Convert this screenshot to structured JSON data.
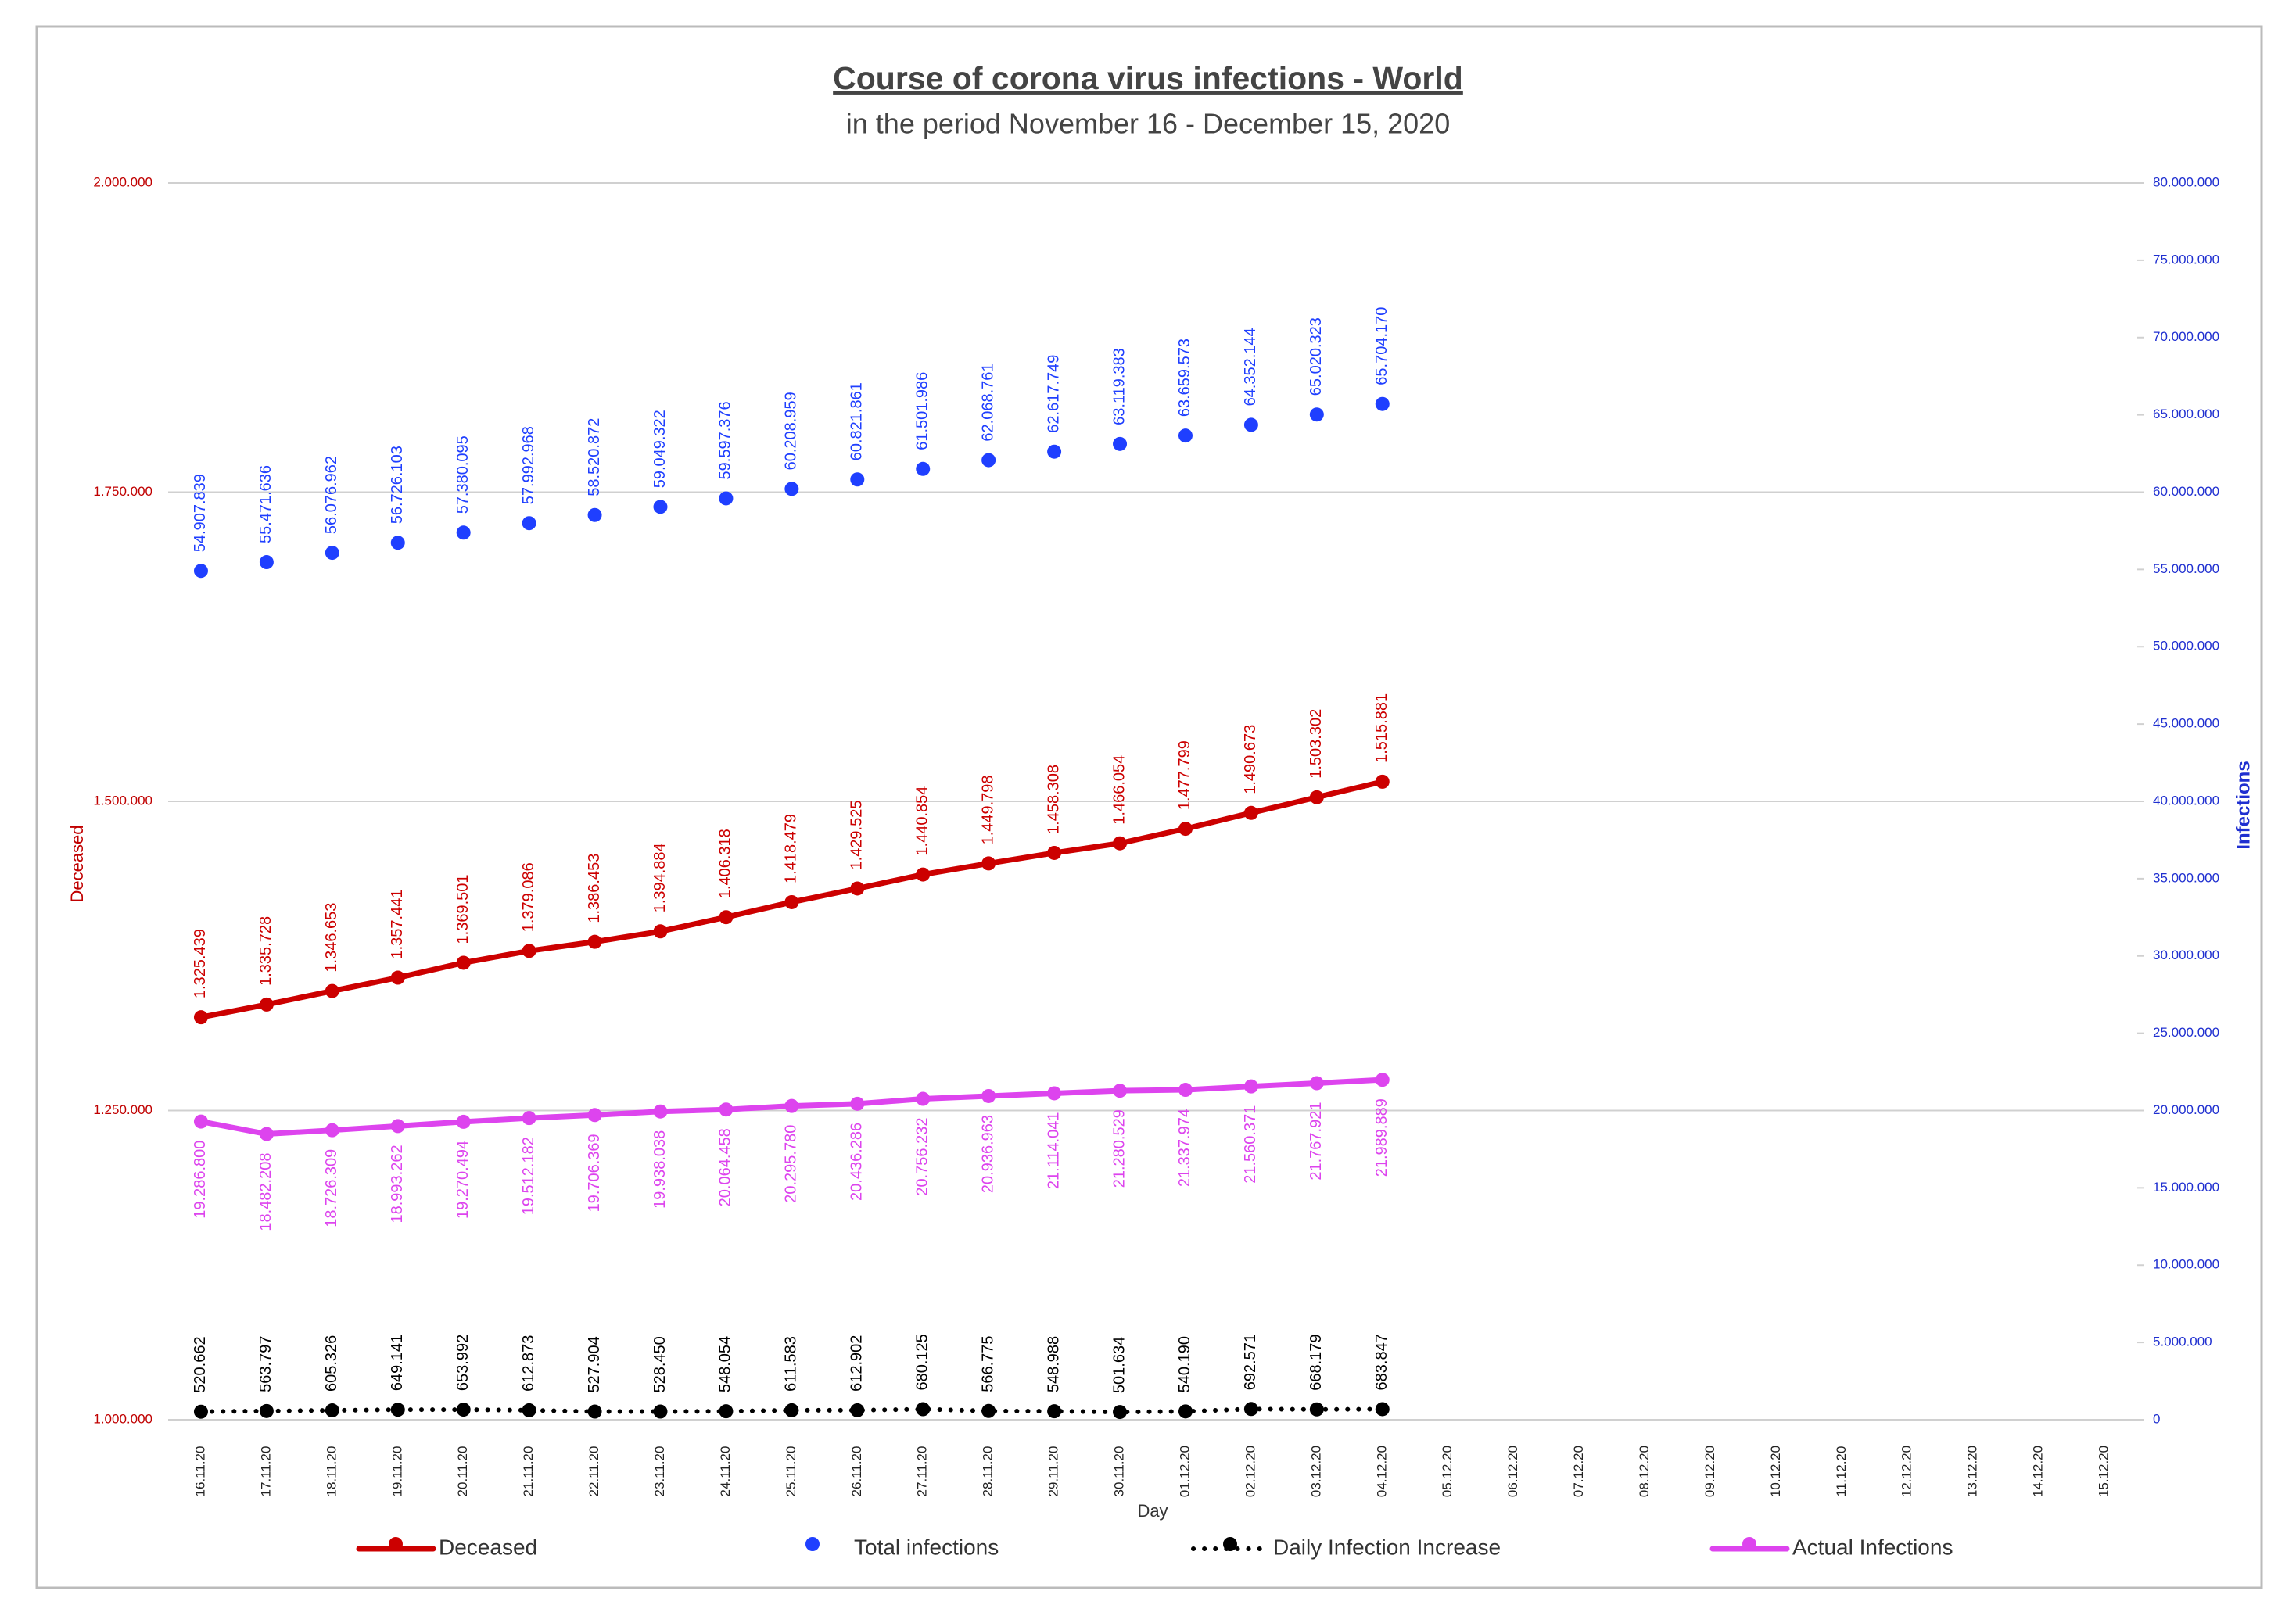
{
  "chart_data": {
    "type": "line",
    "title": "Course of corona virus infections - World",
    "subtitle": "in the period November 16 - December 15, 2020",
    "x_label": "Day",
    "y_label": "Deceased",
    "y2_label": "Infections",
    "categories": [
      "16.11.20",
      "17.11.20",
      "18.11.20",
      "19.11.20",
      "20.11.20",
      "21.11.20",
      "22.11.20",
      "23.11.20",
      "24.11.20",
      "25.11.20",
      "26.11.20",
      "27.11.20",
      "28.11.20",
      "29.11.20",
      "30.11.20",
      "01.12.20",
      "02.12.20",
      "03.12.20",
      "04.12.20",
      "05.12.20",
      "06.12.20",
      "07.12.20",
      "08.12.20",
      "09.12.20",
      "10.12.20",
      "11.12.20",
      "12.12.20",
      "13.12.20",
      "14.12.20",
      "15.12.20"
    ],
    "ylim": [
      1000000,
      2000000
    ],
    "yticks": [
      {
        "value": 1000000,
        "label": "1.000.000"
      },
      {
        "value": 1250000,
        "label": "1.250.000"
      },
      {
        "value": 1500000,
        "label": "1.500.000"
      },
      {
        "value": 1750000,
        "label": "1.750.000"
      },
      {
        "value": 2000000,
        "label": "2.000.000"
      }
    ],
    "y2lim": [
      0,
      80000000
    ],
    "y2ticks": [
      0,
      {
        "value": 5000000,
        "label": "5.000.000"
      },
      {
        "value": 10000000,
        "label": "10.000.000"
      },
      {
        "value": 15000000,
        "label": "15.000.000"
      },
      {
        "value": 20000000,
        "label": "20.000.000"
      },
      {
        "value": 25000000,
        "label": "25.000.000"
      },
      {
        "value": 30000000,
        "label": "30.000.000"
      },
      {
        "value": 35000000,
        "label": "35.000.000"
      },
      {
        "value": 40000000,
        "label": "40.000.000"
      },
      {
        "value": 45000000,
        "label": "45.000.000"
      },
      {
        "value": 50000000,
        "label": "50.000.000"
      },
      {
        "value": 55000000,
        "label": "55.000.000"
      },
      {
        "value": 60000000,
        "label": "60.000.000"
      },
      {
        "value": 65000000,
        "label": "65.000.000"
      },
      {
        "value": 70000000,
        "label": "70.000.000"
      },
      {
        "value": 75000000,
        "label": "75.000.000"
      },
      {
        "value": 80000000,
        "label": "80.000.000"
      }
    ],
    "grid": true,
    "y_color": "#c00000",
    "y2_color": "#1f2fd0",
    "series": [
      {
        "name": "Deceased",
        "color": "#cc0000",
        "line_style": "solid",
        "label_side": "above",
        "values": [
          1325439,
          1335728,
          1346653,
          1357441,
          1369501,
          1379086,
          1386453,
          1394884,
          1406318,
          1418479,
          1429525,
          1440854,
          1449798,
          1458308,
          1466054,
          1477799,
          1490673,
          1503302,
          1515881,
          null,
          null,
          null,
          null,
          null,
          null,
          null,
          null,
          null,
          null,
          null
        ],
        "value_labels": [
          "1.325.439",
          "1.335.728",
          "1.346.653",
          "1.357.441",
          "1.369.501",
          "1.379.086",
          "1.386.453",
          "1.394.884",
          "1.406.318",
          "1.418.479",
          "1.429.525",
          "1.440.854",
          "1.449.798",
          "1.458.308",
          "1.466.054",
          "1.477.799",
          "1.490.673",
          "1.503.302",
          "1.515.881",
          null,
          null,
          null,
          null,
          null,
          null,
          null,
          null,
          null,
          null,
          null
        ]
      },
      {
        "name": "Total infections",
        "color": "#1f3fff",
        "line_style": "none",
        "axis": "y2",
        "label_side": "above",
        "values": [
          54907839,
          55471636,
          56076962,
          56726103,
          57380095,
          57992968,
          58520872,
          59049322,
          59597376,
          60208959,
          60821861,
          61501986,
          62068761,
          62617749,
          63119383,
          63659573,
          64352144,
          65020323,
          65704170,
          null,
          null,
          null,
          null,
          null,
          null,
          null,
          null,
          null,
          null,
          null
        ],
        "value_labels": [
          "54.907.839",
          "55.471.636",
          "56.076.962",
          "56.726.103",
          "57.380.095",
          "57.992.968",
          "58.520.872",
          "59.049.322",
          "59.597.376",
          "60.208.959",
          "60.821.861",
          "61.501.986",
          "62.068.761",
          "62.617.749",
          "63.119.383",
          "63.659.573",
          "64.352.144",
          "65.020.323",
          "65.704.170",
          null,
          null,
          null,
          null,
          null,
          null,
          null,
          null,
          null,
          null,
          null
        ]
      },
      {
        "name": "Daily Infection Increase",
        "color": "#000000",
        "line_style": "dotted",
        "axis": "y2",
        "label_side": "above",
        "values": [
          520662,
          563797,
          605326,
          649141,
          653992,
          612873,
          527904,
          528450,
          548054,
          611583,
          612902,
          680125,
          566775,
          548988,
          501634,
          540190,
          692571,
          668179,
          683847,
          null,
          null,
          null,
          null,
          null,
          null,
          null,
          null,
          null,
          null,
          null
        ],
        "value_labels": [
          "520.662",
          "563.797",
          "605.326",
          "649.141",
          "653.992",
          "612.873",
          "527.904",
          "528.450",
          "548.054",
          "611.583",
          "612.902",
          "680.125",
          "566.775",
          "548.988",
          "501.634",
          "540.190",
          "692.571",
          "668.179",
          "683.847",
          null,
          null,
          null,
          null,
          null,
          null,
          null,
          null,
          null,
          null,
          null
        ]
      },
      {
        "name": "Actual Infections",
        "color": "#dd44ee",
        "line_style": "solid",
        "axis": "y2",
        "label_side": "below",
        "values": [
          19286800,
          18482208,
          18726309,
          18993262,
          19270494,
          19512182,
          19706369,
          19938038,
          20064458,
          20295780,
          20436286,
          20756232,
          20936963,
          21114041,
          21280529,
          21337974,
          21560371,
          21767921,
          21989889,
          null,
          null,
          null,
          null,
          null,
          null,
          null,
          null,
          null,
          null,
          null
        ],
        "value_labels": [
          "19.286.800",
          "18.482.208",
          "18.726.309",
          "18.993.262",
          "19.270.494",
          "19.512.182",
          "19.706.369",
          "19.938.038",
          "20.064.458",
          "20.295.780",
          "20.436.286",
          "20.756.232",
          "20.936.963",
          "21.114.041",
          "21.280.529",
          "21.337.974",
          "21.560.371",
          "21.767.921",
          "21.989.889",
          null,
          null,
          null,
          null,
          null,
          null,
          null,
          null,
          null,
          null,
          null
        ]
      }
    ]
  }
}
